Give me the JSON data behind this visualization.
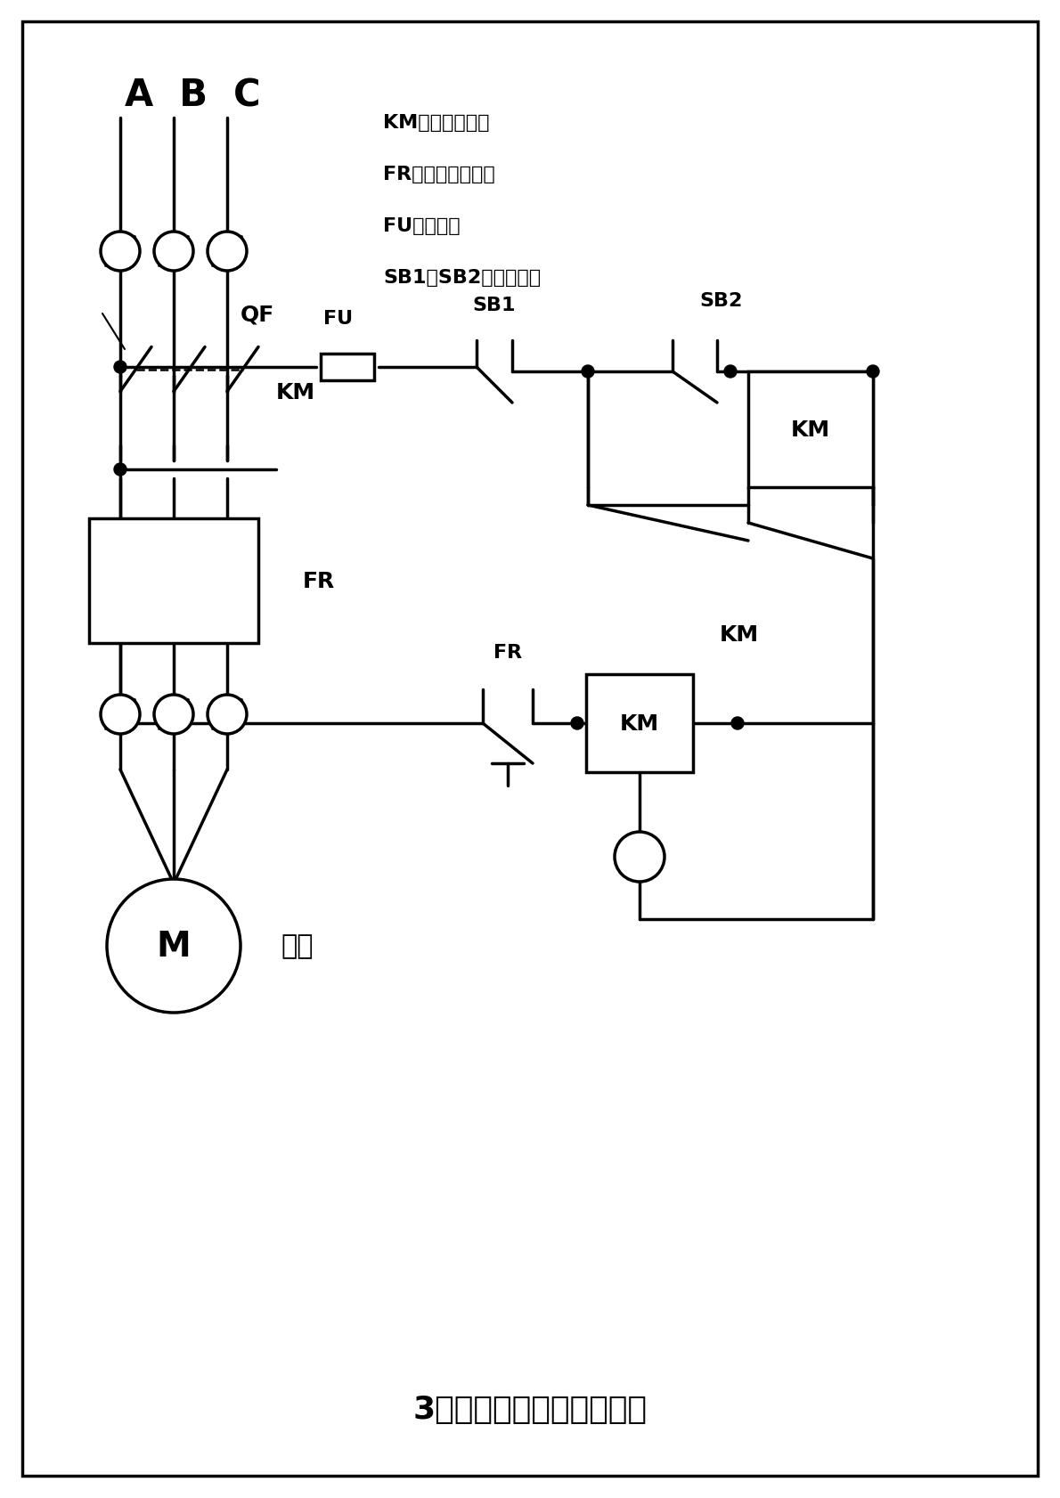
{
  "title": "3相电机启、停控制接线图",
  "legend_items": [
    "KM：交流接触器",
    "FR：热过载继电器",
    "FU：保险丝",
    "SB1、SB2：启停按钮"
  ],
  "bg_color": "#ffffff",
  "line_color": "#000000",
  "border_color": "#000000",
  "ABC_label": "A B C",
  "QF_label": "QF",
  "FU_label": "FU",
  "SB1_label": "SB1",
  "SB2_label": "SB2",
  "KM_label": "KM",
  "FR_label": "FR",
  "motor_label": "M",
  "motor_text": "电机"
}
